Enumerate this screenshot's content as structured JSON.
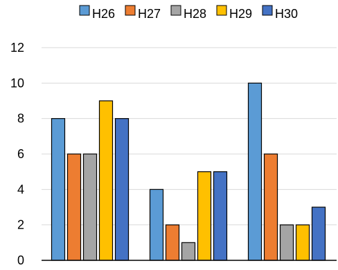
{
  "chart_data": {
    "type": "bar",
    "categories": [
      "",
      "",
      ""
    ],
    "series": [
      {
        "name": "H26",
        "color": "#5b9bd5",
        "values": [
          8,
          4,
          10
        ]
      },
      {
        "name": "H27",
        "color": "#ed7d31",
        "values": [
          6,
          2,
          6
        ]
      },
      {
        "name": "H28",
        "color": "#a5a5a5",
        "values": [
          6,
          1,
          2
        ]
      },
      {
        "name": "H29",
        "color": "#ffc000",
        "values": [
          9,
          5,
          2
        ]
      },
      {
        "name": "H30",
        "color": "#4472c4",
        "values": [
          8,
          5,
          3
        ]
      }
    ],
    "ylim": [
      0,
      12
    ],
    "yticks": [
      0,
      2,
      4,
      6,
      8,
      10,
      12
    ],
    "grid": true,
    "legend_position": "top"
  }
}
